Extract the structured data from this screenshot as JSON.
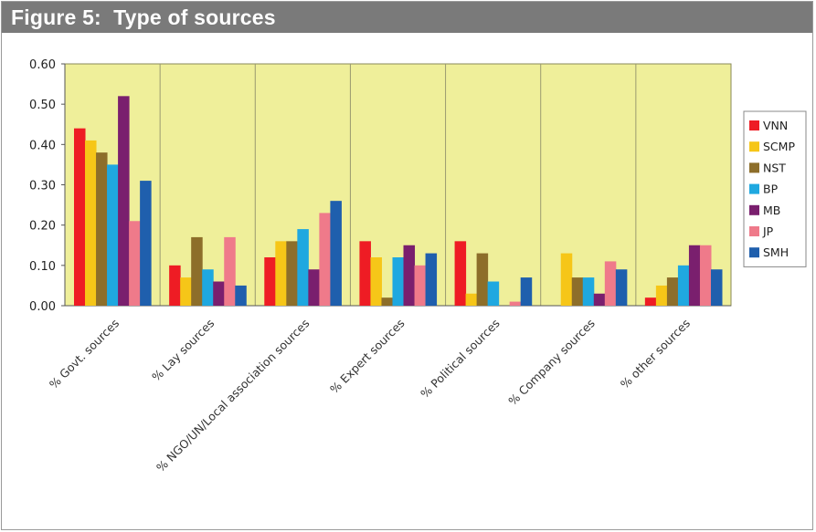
{
  "figure_title": "Figure 5:  Type of sources",
  "colors": {
    "plot_bg": "#efef9a",
    "VNN": "#ee1c24",
    "SCMP": "#f6c618",
    "NST": "#8d6e2a",
    "BP": "#1fa8e0",
    "MB": "#7a1f6e",
    "JP": "#ef7a8a",
    "SMH": "#1f5fad"
  },
  "chart_data": {
    "type": "bar",
    "title": "Figure 5:  Type of sources",
    "xlabel": "",
    "ylabel": "",
    "ylim": [
      0,
      0.6
    ],
    "yticks": [
      "0.00",
      "0.10",
      "0.20",
      "0.30",
      "0.40",
      "0.50",
      "0.60"
    ],
    "grid": false,
    "legend_position": "right",
    "categories": [
      "% Govt. sources",
      "% Lay sources",
      "% NGO/UN/Local association sources",
      "% Expert sources",
      "% Political sources",
      "% Company sources",
      "% other sources"
    ],
    "series": [
      {
        "name": "VNN",
        "values": [
          0.44,
          0.1,
          0.12,
          0.16,
          0.16,
          0.0,
          0.02
        ]
      },
      {
        "name": "SCMP",
        "values": [
          0.41,
          0.07,
          0.16,
          0.12,
          0.03,
          0.13,
          0.05
        ]
      },
      {
        "name": "NST",
        "values": [
          0.38,
          0.17,
          0.16,
          0.02,
          0.13,
          0.07,
          0.07
        ]
      },
      {
        "name": "BP",
        "values": [
          0.35,
          0.09,
          0.19,
          0.12,
          0.06,
          0.07,
          0.1
        ]
      },
      {
        "name": "MB",
        "values": [
          0.52,
          0.06,
          0.09,
          0.15,
          0.0,
          0.03,
          0.15
        ]
      },
      {
        "name": "JP",
        "values": [
          0.21,
          0.17,
          0.23,
          0.1,
          0.01,
          0.11,
          0.15
        ]
      },
      {
        "name": "SMH",
        "values": [
          0.31,
          0.05,
          0.26,
          0.13,
          0.07,
          0.09,
          0.09
        ]
      }
    ]
  }
}
